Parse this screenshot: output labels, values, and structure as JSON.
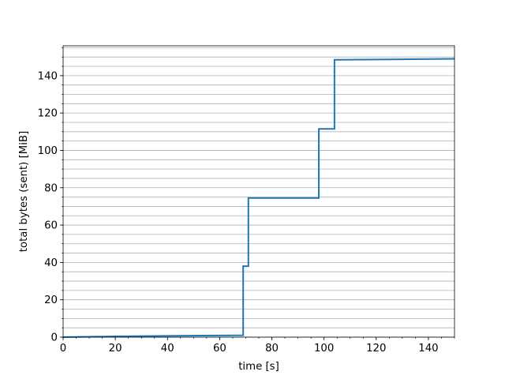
{
  "chart_data": {
    "type": "line",
    "title": "",
    "xlabel": "time [s]",
    "ylabel": "total bytes (sent) [MiB]",
    "xlim": [
      0,
      150
    ],
    "ylim": [
      0,
      156
    ],
    "x_ticks": [
      0,
      20,
      40,
      60,
      80,
      100,
      120,
      140
    ],
    "y_ticks": [
      0,
      20,
      40,
      60,
      80,
      100,
      120,
      140
    ],
    "x_minor_step": 5,
    "y_minor_step": 5,
    "grid": "horizontal-minor",
    "series": [
      {
        "color": "#1f77b4",
        "points": [
          [
            0,
            0
          ],
          [
            20,
            0.4
          ],
          [
            40,
            0.7
          ],
          [
            60,
            0.9
          ],
          [
            69,
            1.0
          ],
          [
            69,
            38
          ],
          [
            71,
            38
          ],
          [
            71,
            74.5
          ],
          [
            98,
            74.5
          ],
          [
            98,
            111.5
          ],
          [
            104,
            111.5
          ],
          [
            104,
            148.5
          ],
          [
            150,
            149
          ]
        ]
      }
    ]
  }
}
